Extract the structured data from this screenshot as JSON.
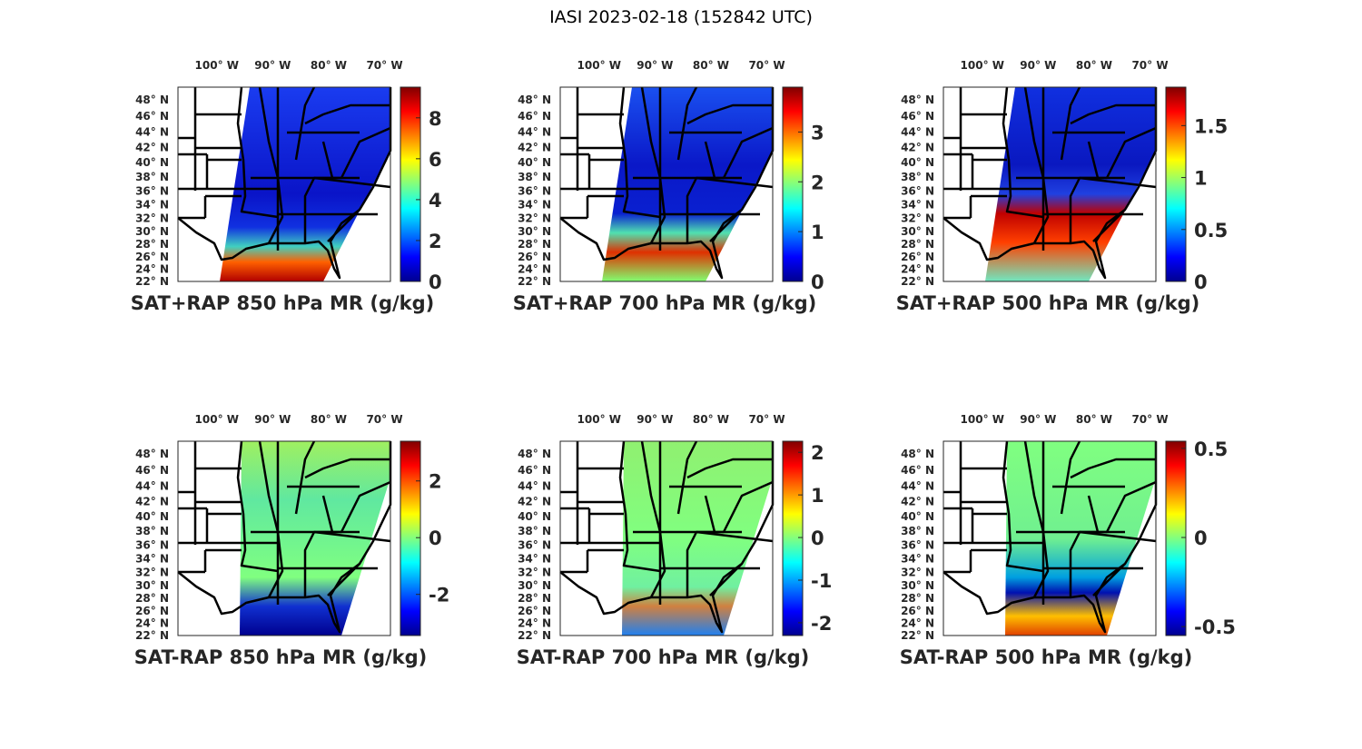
{
  "title": "IASI 2023-02-18 (152842 UTC)",
  "lon_ticks": [
    "100° W",
    "90° W",
    "80° W",
    "70° W"
  ],
  "lat_ticks": [
    "48° N",
    "46° N",
    "44° N",
    "42° N",
    "40° N",
    "38° N",
    "36° N",
    "34° N",
    "32° N",
    "30° N",
    "28° N",
    "26° N",
    "24° N",
    "22° N"
  ],
  "colormap": "jet",
  "panels": [
    {
      "title": "SAT+RAP 850 hPa MR (g/kg)",
      "clim": [
        0,
        9.5
      ],
      "ticks": [
        "0",
        "2",
        "4",
        "6",
        "8"
      ]
    },
    {
      "title": "SAT+RAP 700 hPa MR (g/kg)",
      "clim": [
        0,
        3.9
      ],
      "ticks": [
        "0",
        "1",
        "2",
        "3"
      ]
    },
    {
      "title": "SAT+RAP 500 hPa MR (g/kg)",
      "clim": [
        0,
        1.87
      ],
      "ticks": [
        "0",
        "0.5",
        "1",
        "1.5"
      ]
    },
    {
      "title": "SAT-RAP 850 hPa MR (g/kg)",
      "clim": [
        -3.45,
        3.4
      ],
      "ticks": [
        "-2",
        "0",
        "2"
      ]
    },
    {
      "title": "SAT-RAP 700 hPa MR (g/kg)",
      "clim": [
        -2.3,
        2.26
      ],
      "ticks": [
        "-2",
        "-1",
        "0",
        "1",
        "2"
      ]
    },
    {
      "title": "SAT-RAP 500 hPa MR (g/kg)",
      "clim": [
        -0.55,
        0.54
      ],
      "ticks": [
        "-0.5",
        "0",
        "0.5"
      ]
    }
  ]
}
